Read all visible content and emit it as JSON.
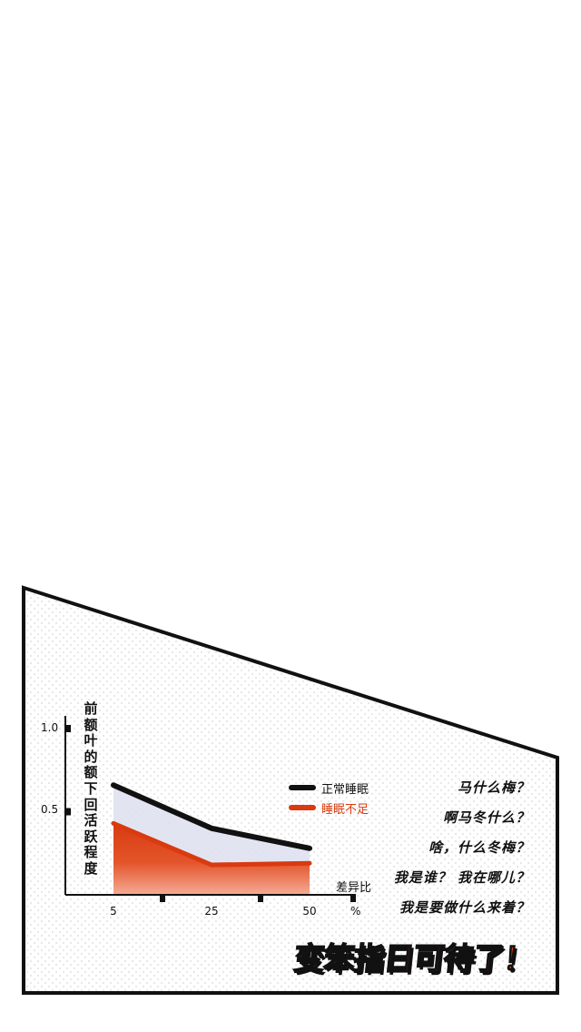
{
  "colors": {
    "normal": "#111111",
    "deprived": "#d93a0f",
    "band": "#dfe2f0",
    "headline": "#e8431a"
  },
  "chart_data": {
    "type": "area",
    "ylabel": "前额叶的额下回活跃程度",
    "xlabel": "差异比",
    "x_unit": "%",
    "x": [
      5,
      25,
      50
    ],
    "x_ticks": [
      "5",
      "25",
      "50"
    ],
    "y_ticks": [
      "1.0",
      "0.5"
    ],
    "ylim": [
      0,
      1.0
    ],
    "series": [
      {
        "name": "正常睡眠",
        "values": [
          0.66,
          0.4,
          0.28
        ]
      },
      {
        "name": "睡眠不足",
        "values": [
          0.43,
          0.18,
          0.19
        ]
      }
    ],
    "legend_position": "right"
  },
  "questions": [
    "马什么梅？",
    "啊马冬什么？",
    "啥，什么冬梅？",
    "我是谁？ 我在哪儿？",
    "我是要做什么来着？"
  ],
  "headline": "变笨指日可待了！"
}
